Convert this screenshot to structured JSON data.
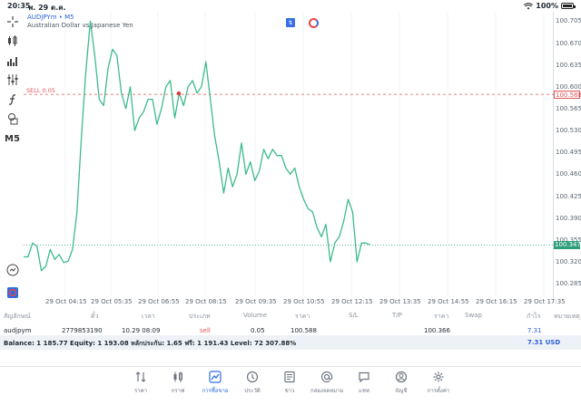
{
  "status": {
    "time": "20:35",
    "date": "พ. 29 ต.ค.",
    "battery": "100%"
  },
  "chart": {
    "symbol_title": "AUDJPYm • M5",
    "symbol_desc": "Australian Dollar vs Japanese Yen",
    "timeframe": "M5",
    "sell_label": "SELL 0.05",
    "sell_price": "100.588",
    "bid_price": "100.347",
    "price_ticks": [
      "100.705",
      "100.670",
      "100.635",
      "100.600",
      "100.565",
      "100.530",
      "100.495",
      "100.460",
      "100.425",
      "100.390",
      "100.355",
      "100.320",
      "100.285"
    ],
    "time_ticks": [
      "29 Oct 04:15",
      "29 Oct 05:35",
      "29 Oct 06:55",
      "29 Oct 08:15",
      "29 Oct 09:35",
      "29 Oct 10:55",
      "29 Oct 12:15",
      "29 Oct 13:35",
      "29 Oct 14:55",
      "29 Oct 16:15",
      "29 Oct 17:35"
    ],
    "colors": {
      "line": "#3dbb8a",
      "sell_line": "#e05555",
      "bid_line": "#2f9e7a",
      "accent": "#2c6de0"
    }
  },
  "chart_data": {
    "type": "line",
    "series": [
      {
        "values": [
          100.328,
          100.328,
          100.35,
          100.345,
          100.306,
          100.313,
          100.34,
          100.324,
          100.332,
          100.319,
          100.321,
          100.34,
          100.4,
          100.52,
          100.625,
          100.705,
          100.65,
          100.58,
          100.57,
          100.63,
          100.66,
          100.65,
          100.59,
          100.565,
          100.6,
          100.53,
          100.55,
          100.56,
          100.58,
          100.58,
          100.54,
          100.565,
          100.6,
          100.61,
          100.55,
          100.59,
          100.57,
          100.6,
          100.61,
          100.59,
          100.6,
          100.64,
          100.58,
          100.52,
          100.48,
          100.43,
          100.47,
          100.44,
          100.46,
          100.51,
          100.46,
          100.48,
          100.45,
          100.465,
          100.5,
          100.485,
          100.5,
          100.49,
          100.49,
          100.47,
          100.46,
          100.47,
          100.44,
          100.42,
          100.405,
          100.4,
          100.375,
          100.36,
          100.38,
          100.32,
          100.35,
          100.36,
          100.385,
          100.42,
          100.4,
          100.32,
          100.35,
          100.35,
          100.347
        ]
      }
    ],
    "ylim": [
      100.265,
      100.72
    ]
  },
  "table": {
    "headers": [
      "สัญลักษณ์",
      "ตั๋ว",
      "เวลา",
      "ประเภท",
      "Volume",
      "ราคา",
      "S/L",
      "T/P",
      "ราคา",
      "Swap",
      "กำไร",
      "หมายเหตุ"
    ],
    "row": {
      "symbol": "audjpym",
      "ticket": "2779853190",
      "time": "10.29 08:09",
      "type": "sell",
      "volume": "0.05",
      "open_price": "100.588",
      "sl": "",
      "tp": "",
      "current_price": "100.366",
      "swap": "",
      "profit": "7.31",
      "comment": ""
    },
    "balance_text": "Balance: 1 185.77 Equity: 1 193.08 หลักประกัน: 1.65 ฟรี: 1 191.43 Level: 72 307.88%",
    "balance_profit": "7.31  USD"
  },
  "nav": {
    "items": [
      {
        "label": "ราคา",
        "icon": "quotes-icon"
      },
      {
        "label": "กราฟ",
        "icon": "chart-icon"
      },
      {
        "label": "การซื้อขาย",
        "icon": "trade-icon"
      },
      {
        "label": "ประวัติ",
        "icon": "history-icon"
      },
      {
        "label": "ข่าว",
        "icon": "news-icon"
      },
      {
        "label": "กล่องจดหมาย",
        "icon": "mailbox-icon"
      },
      {
        "label": "แชท",
        "icon": "chat-icon"
      },
      {
        "label": "บัญชี",
        "icon": "account-icon"
      },
      {
        "label": "การตั้งค่า",
        "icon": "settings-icon"
      }
    ]
  }
}
